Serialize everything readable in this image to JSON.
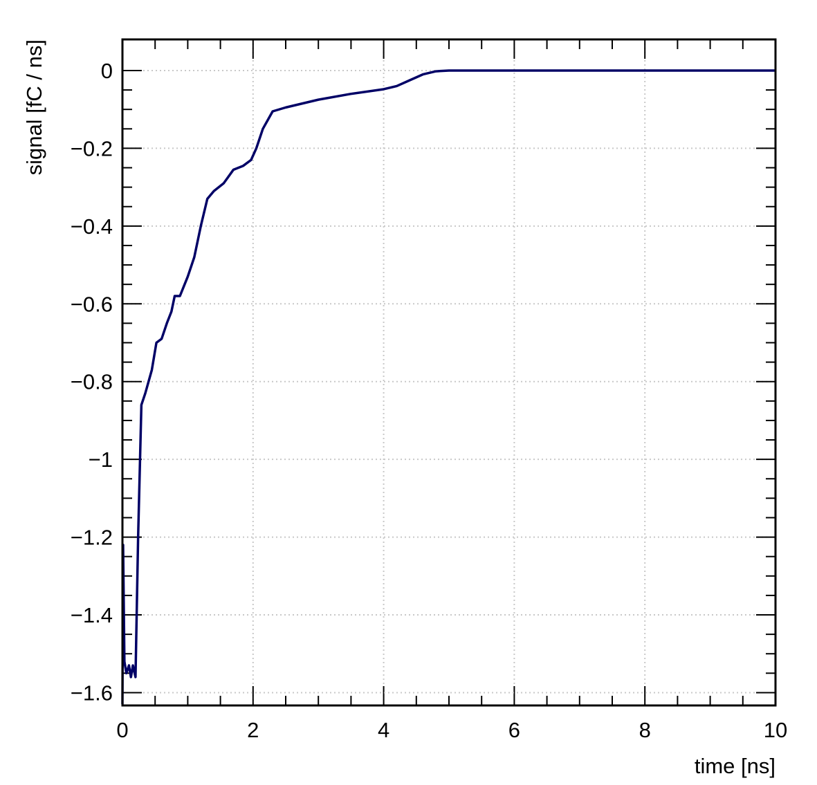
{
  "chart_data": {
    "type": "line",
    "xlabel": "time [ns]",
    "ylabel": "signal [fC / ns]",
    "xlim": [
      0,
      10
    ],
    "ylim": [
      -1.633,
      0.08
    ],
    "xticks": [
      0,
      2,
      4,
      6,
      8,
      10
    ],
    "yticks": [
      {
        "value": -1.6,
        "label": "−1.6"
      },
      {
        "value": -1.4,
        "label": "−1.4"
      },
      {
        "value": -1.2,
        "label": "−1.2"
      },
      {
        "value": -1,
        "label": "−1"
      },
      {
        "value": -0.8,
        "label": "−0.8"
      },
      {
        "value": -0.6,
        "label": "−0.6"
      },
      {
        "value": -0.4,
        "label": "−0.4"
      },
      {
        "value": -0.2,
        "label": "−0.2"
      },
      0
    ],
    "grid": true,
    "x": [
      0,
      0.01,
      0.03,
      0.06,
      0.1,
      0.13,
      0.16,
      0.2,
      0.24,
      0.29,
      0.35,
      0.45,
      0.52,
      0.6,
      0.68,
      0.75,
      0.8,
      0.88,
      1.0,
      1.1,
      1.2,
      1.3,
      1.4,
      1.55,
      1.7,
      1.85,
      1.97,
      2.05,
      2.15,
      2.3,
      2.5,
      3.0,
      3.5,
      4.0,
      4.2,
      4.4,
      4.6,
      4.8,
      5.0,
      6,
      8,
      10
    ],
    "series": [
      {
        "color": "#000066",
        "values": [
          -1.63,
          -1.22,
          -1.52,
          -1.55,
          -1.53,
          -1.56,
          -1.53,
          -1.56,
          -1.2,
          -0.86,
          -0.83,
          -0.77,
          -0.7,
          -0.69,
          -0.65,
          -0.62,
          -0.58,
          -0.58,
          -0.53,
          -0.48,
          -0.4,
          -0.33,
          -0.31,
          -0.29,
          -0.255,
          -0.245,
          -0.23,
          -0.2,
          -0.15,
          -0.105,
          -0.095,
          -0.075,
          -0.06,
          -0.048,
          -0.04,
          -0.025,
          -0.01,
          -0.002,
          0,
          0,
          0,
          0
        ]
      }
    ]
  }
}
